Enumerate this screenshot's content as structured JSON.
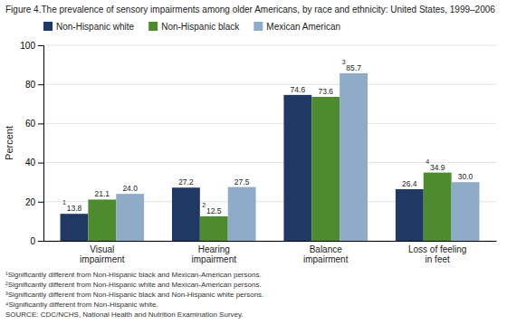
{
  "chart_data": {
    "type": "bar",
    "title": "Figure 4.The prevalence of sensory impairments among older Americans, by race and ethnicity: United States, 1999–2006",
    "categories": [
      "Visual\nimpairment",
      "Hearing\nimpairment",
      "Balance\nimpairment",
      "Loss of feeling\nin feet"
    ],
    "series": [
      {
        "name": "Non-Hispanic white",
        "color": "#1f3864",
        "values": [
          13.8,
          27.2,
          74.6,
          26.4
        ],
        "value_labels": [
          "13.8",
          "27.2",
          "74.6",
          "26.4"
        ],
        "superscripts": [
          "1",
          null,
          null,
          null
        ]
      },
      {
        "name": "Non-Hispanic black",
        "color": "#4e8a2e",
        "values": [
          21.1,
          12.5,
          73.6,
          34.9
        ],
        "value_labels": [
          "21.1",
          "12.5",
          "73.6",
          "34.9"
        ],
        "superscripts": [
          null,
          "2",
          null,
          "4"
        ]
      },
      {
        "name": "Mexican American",
        "color": "#8eacc8",
        "values": [
          24.0,
          27.5,
          85.7,
          30.0
        ],
        "value_labels": [
          "24.0",
          "27.5",
          "85.7",
          "30.0"
        ],
        "superscripts": [
          null,
          null,
          "3",
          null
        ]
      }
    ],
    "ylabel": "Percent",
    "ylim": [
      0,
      100
    ],
    "yticks": [
      0,
      20,
      40,
      60,
      80,
      100
    ],
    "grid": true,
    "legend": "top",
    "data_labels": true,
    "footnotes": [
      "¹Significantly different from Non-Hispanic black and Mexican-American persons.",
      "²Significantly different from Non-Hispanic white and Mexican-American persons.",
      "³Significantly different from Non-Hispanic black and Non-Hispanic white persons.",
      "⁴Significantly different from Non-Hispanic white.",
      "SOURCE: CDC/NCHS, National Health and Nutrition Examination Survey."
    ]
  }
}
